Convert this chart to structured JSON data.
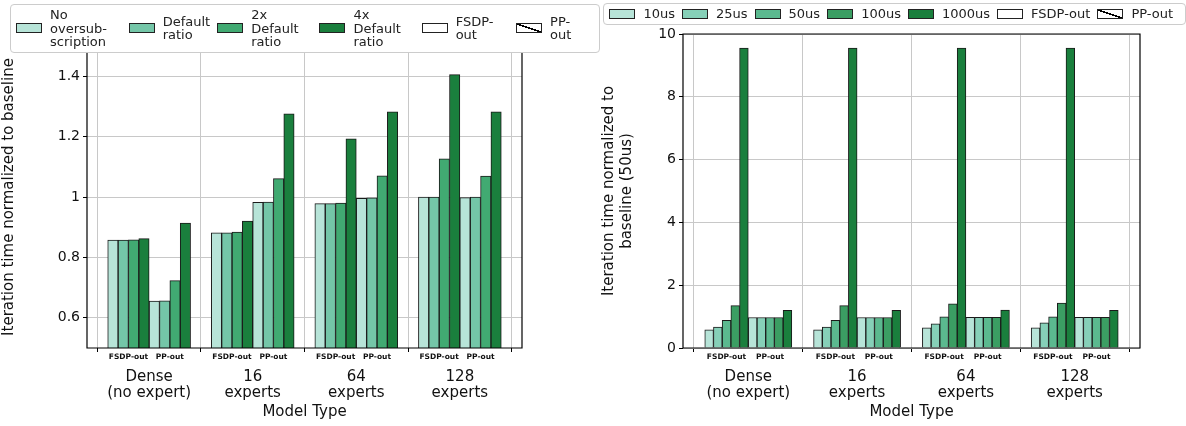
{
  "chart_data": [
    {
      "type": "bar",
      "xlabel": "Model Type",
      "ylabel": "Iteration time normalized to baseline",
      "categories": [
        "FSDP-out",
        "PP-out",
        "FSDP-out",
        "PP-out",
        "FSDP-out",
        "PP-out",
        "FSDP-out",
        "PP-out"
      ],
      "series": [
        {
          "name": "No oversub-\nscription",
          "color": "#b7e4d8",
          "values": [
            0.857,
            0.655,
            0.881,
            0.982,
            0.978,
            0.996,
            1.0,
            0.998
          ]
        },
        {
          "name": "Default\nratio",
          "color": "#74c6a8",
          "values": [
            0.857,
            0.656,
            0.881,
            0.983,
            0.978,
            0.997,
            1.0,
            1.0
          ]
        },
        {
          "name": "2x Default\nratio",
          "color": "#41aa72",
          "values": [
            0.858,
            0.723,
            0.884,
            1.061,
            0.98,
            1.07,
            1.126,
            1.069
          ]
        },
        {
          "name": "4x Default\nratio",
          "color": "#1a7f3d",
          "values": [
            0.862,
            0.914,
            0.92,
            1.275,
            1.193,
            1.282,
            1.405,
            1.282
          ]
        },
        {
          "name": "FSDP-out",
          "color": "#ffffff",
          "values": [
            null,
            null,
            null,
            null,
            null,
            null,
            null,
            null
          ]
        },
        {
          "name": "PP-out",
          "color": "#ffffff",
          "values": [
            null,
            null,
            null,
            null,
            null,
            null,
            null,
            null
          ]
        }
      ],
      "annotations": [
        "Dense\n(no expert)",
        "16\nexperts",
        "64\nexperts",
        "128\nexperts"
      ],
      "ylim": [
        0.5,
        1.5
      ],
      "yticks": [
        0.6,
        0.8,
        1.0,
        1.2,
        1.4
      ],
      "grid": true,
      "legend": "top"
    },
    {
      "type": "bar",
      "xlabel": "Model Type",
      "ylabel": "Iteration time normalized to\nbaseline (50us)",
      "categories": [
        "FSDP-out",
        "PP-out",
        "FSDP-out",
        "PP-out",
        "FSDP-out",
        "PP-out",
        "FSDP-out",
        "PP-out"
      ],
      "series": [
        {
          "name": "10us",
          "color": "#b7e4d8",
          "values": [
            0.58,
            0.97,
            0.58,
            0.97,
            0.64,
            0.98,
            0.64,
            0.98
          ]
        },
        {
          "name": "25us",
          "color": "#86d0b8",
          "values": [
            0.67,
            0.97,
            0.67,
            0.97,
            0.77,
            0.98,
            0.8,
            0.98
          ]
        },
        {
          "name": "50us",
          "color": "#5bb98f",
          "values": [
            0.88,
            0.97,
            0.88,
            0.97,
            0.99,
            0.98,
            0.99,
            0.98
          ]
        },
        {
          "name": "100us",
          "color": "#3b9e63",
          "values": [
            1.35,
            0.97,
            1.35,
            0.97,
            1.41,
            0.98,
            1.43,
            0.98
          ]
        },
        {
          "name": "1000us",
          "color": "#1a7f3d",
          "values": [
            9.55,
            1.2,
            9.55,
            1.2,
            9.55,
            1.21,
            9.55,
            1.2
          ]
        },
        {
          "name": "FSDP-out",
          "color": "#ffffff",
          "values": [
            null,
            null,
            null,
            null,
            null,
            null,
            null,
            null
          ]
        },
        {
          "name": "PP-out",
          "color": "#ffffff",
          "values": [
            null,
            null,
            null,
            null,
            null,
            null,
            null,
            null
          ]
        }
      ],
      "annotations": [
        "Dense\n(no expert)",
        "16\nexperts",
        "64\nexperts",
        "128\nexperts"
      ],
      "ylim": [
        0,
        10
      ],
      "yticks": [
        0,
        2,
        4,
        6,
        8,
        10
      ],
      "grid": true,
      "legend": "top right"
    }
  ]
}
